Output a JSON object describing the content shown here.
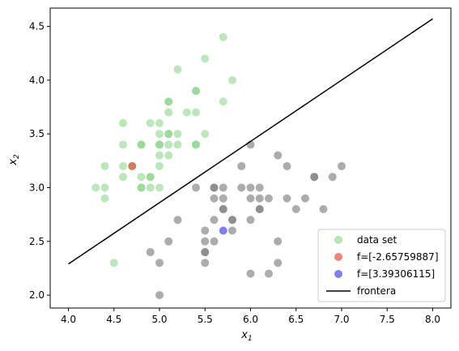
{
  "chart_data": {
    "type": "scatter",
    "xlabel": "x",
    "xlabel_sub": "1",
    "ylabel": "x",
    "ylabel_sub": "2",
    "xlim": [
      3.8,
      8.2
    ],
    "ylim": [
      1.88,
      4.67
    ],
    "xticks": [
      4.0,
      4.5,
      5.0,
      5.5,
      6.0,
      6.5,
      7.0,
      7.5,
      8.0
    ],
    "xtick_labels": [
      "4.0",
      "4.5",
      "5.0",
      "5.5",
      "6.0",
      "6.5",
      "7.0",
      "7.5",
      "8.0"
    ],
    "yticks": [
      2.0,
      2.5,
      3.0,
      3.5,
      4.0,
      4.5
    ],
    "ytick_labels": [
      "2.0",
      "2.5",
      "3.0",
      "3.5",
      "4.0",
      "4.5"
    ],
    "grid": false,
    "legend_position": "lower-right",
    "colors": {
      "class_a": "#7ccd7c",
      "class_b": "#808080",
      "point_red": "#e8331f",
      "point_blue": "#2a2ae8",
      "boundary": "#000000"
    },
    "series": [
      {
        "name": "data set",
        "kind": "points",
        "color_a": "#7ccd7c",
        "color_b": "#808080",
        "points_a": [
          [
            5.7,
            4.4
          ],
          [
            5.5,
            4.2
          ],
          [
            5.2,
            4.1
          ],
          [
            5.8,
            4.0
          ],
          [
            5.4,
            3.9
          ],
          [
            5.4,
            3.9
          ],
          [
            5.1,
            3.8
          ],
          [
            5.1,
            3.8
          ],
          [
            5.7,
            3.8
          ],
          [
            5.1,
            3.7
          ],
          [
            5.3,
            3.7
          ],
          [
            5.4,
            3.7
          ],
          [
            4.6,
            3.6
          ],
          [
            4.9,
            3.6
          ],
          [
            5.0,
            3.6
          ],
          [
            5.0,
            3.5
          ],
          [
            5.1,
            3.5
          ],
          [
            5.1,
            3.5
          ],
          [
            5.2,
            3.5
          ],
          [
            5.5,
            3.5
          ],
          [
            4.6,
            3.4
          ],
          [
            4.8,
            3.4
          ],
          [
            4.8,
            3.4
          ],
          [
            5.0,
            3.4
          ],
          [
            5.0,
            3.4
          ],
          [
            5.1,
            3.4
          ],
          [
            5.2,
            3.4
          ],
          [
            5.4,
            3.4
          ],
          [
            5.4,
            3.4
          ],
          [
            5.0,
            3.3
          ],
          [
            5.1,
            3.3
          ],
          [
            4.4,
            3.2
          ],
          [
            4.6,
            3.2
          ],
          [
            4.7,
            3.2
          ],
          [
            5.0,
            3.2
          ],
          [
            4.6,
            3.1
          ],
          [
            4.8,
            3.1
          ],
          [
            4.9,
            3.1
          ],
          [
            4.9,
            3.1
          ],
          [
            4.3,
            3.0
          ],
          [
            4.4,
            3.0
          ],
          [
            4.8,
            3.0
          ],
          [
            4.8,
            3.0
          ],
          [
            4.9,
            3.0
          ],
          [
            5.0,
            3.0
          ],
          [
            4.4,
            2.9
          ],
          [
            4.5,
            2.3
          ]
        ],
        "points_b": [
          [
            6.0,
            3.4
          ],
          [
            6.3,
            3.3
          ],
          [
            5.9,
            3.2
          ],
          [
            6.4,
            3.2
          ],
          [
            7.0,
            3.2
          ],
          [
            6.7,
            3.1
          ],
          [
            6.7,
            3.1
          ],
          [
            6.9,
            3.1
          ],
          [
            5.4,
            3.0
          ],
          [
            5.6,
            3.0
          ],
          [
            5.6,
            3.0
          ],
          [
            5.7,
            3.0
          ],
          [
            5.9,
            3.0
          ],
          [
            6.0,
            3.0
          ],
          [
            6.1,
            3.0
          ],
          [
            5.6,
            2.9
          ],
          [
            5.7,
            2.9
          ],
          [
            6.0,
            2.9
          ],
          [
            6.1,
            2.9
          ],
          [
            6.2,
            2.9
          ],
          [
            6.4,
            2.9
          ],
          [
            6.6,
            2.9
          ],
          [
            5.7,
            2.8
          ],
          [
            5.7,
            2.8
          ],
          [
            6.1,
            2.8
          ],
          [
            6.1,
            2.8
          ],
          [
            6.5,
            2.8
          ],
          [
            6.8,
            2.8
          ],
          [
            5.2,
            2.7
          ],
          [
            5.6,
            2.7
          ],
          [
            5.8,
            2.7
          ],
          [
            5.8,
            2.7
          ],
          [
            6.0,
            2.7
          ],
          [
            5.5,
            2.6
          ],
          [
            5.8,
            2.6
          ],
          [
            5.1,
            2.5
          ],
          [
            5.5,
            2.5
          ],
          [
            5.6,
            2.5
          ],
          [
            6.3,
            2.5
          ],
          [
            4.9,
            2.4
          ],
          [
            5.5,
            2.4
          ],
          [
            5.5,
            2.4
          ],
          [
            5.0,
            2.3
          ],
          [
            5.5,
            2.3
          ],
          [
            6.3,
            2.3
          ],
          [
            6.0,
            2.2
          ],
          [
            6.2,
            2.2
          ],
          [
            5.0,
            2.0
          ]
        ]
      },
      {
        "name": "f=[-2.65759887]",
        "kind": "point",
        "color": "#e8331f",
        "x": 4.7,
        "y": 3.2
      },
      {
        "name": "f=[3.39306115]",
        "kind": "point",
        "color": "#2a2ae8",
        "x": 5.7,
        "y": 2.6
      },
      {
        "name": "frontera",
        "kind": "line",
        "color": "#000000",
        "x": [
          4.0,
          8.0
        ],
        "y": [
          2.29,
          4.57
        ]
      }
    ]
  }
}
